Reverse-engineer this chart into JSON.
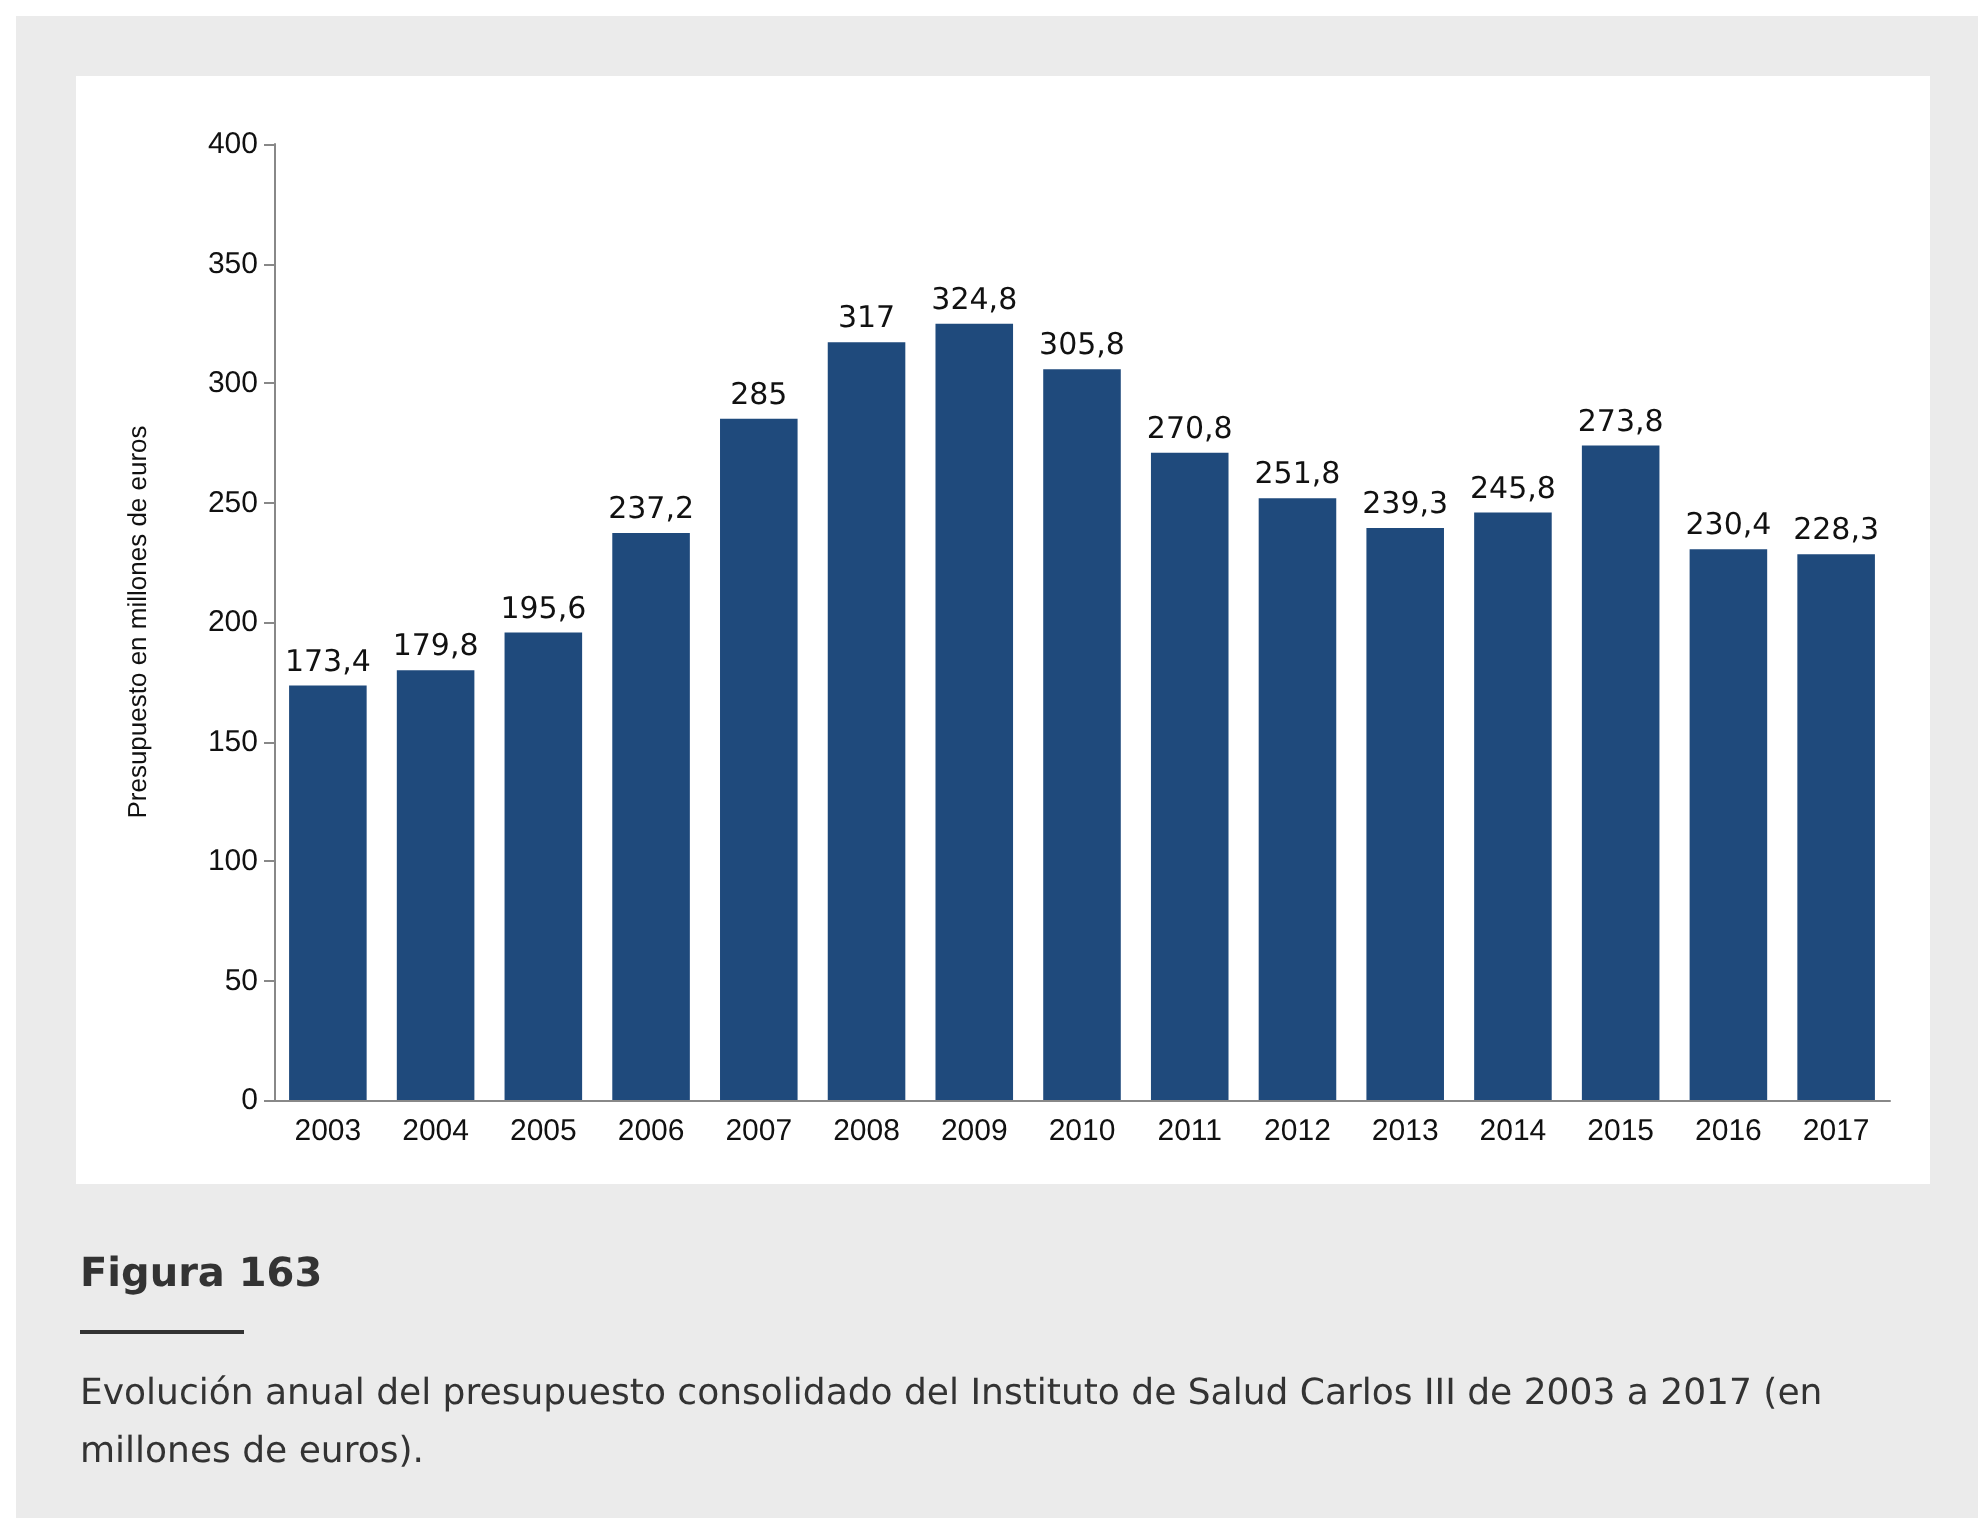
{
  "chart_data": {
    "type": "bar",
    "title": "Figura 163",
    "annotations": [
      "Evolución anual del presupuesto consolidado del Instituto de Salud Carlos III de 2003 a 2017 (en millones de euros)."
    ],
    "ylabel": "Presupuesto en millones de euros",
    "categories": [
      "2003",
      "2004",
      "2005",
      "2006",
      "2007",
      "2008",
      "2009",
      "2010",
      "2011",
      "2012",
      "2013",
      "2014",
      "2015",
      "2016",
      "2017"
    ],
    "values": [
      173.4,
      179.8,
      195.6,
      237.2,
      285,
      317,
      324.8,
      305.8,
      270.8,
      251.8,
      239.3,
      245.8,
      273.8,
      230.4,
      228.3
    ],
    "value_labels": [
      "173,4",
      "179,8",
      "195,6",
      "237,2",
      "285",
      "317",
      "324,8",
      "305,8",
      "270,8",
      "251,8",
      "239,3",
      "245,8",
      "273,8",
      "230,4",
      "228,3"
    ],
    "color": "#1f4a7c",
    "ylim": [
      0,
      400
    ],
    "yticks": [
      0,
      50,
      100,
      150,
      200,
      250,
      300,
      350,
      400
    ],
    "grid": false
  }
}
